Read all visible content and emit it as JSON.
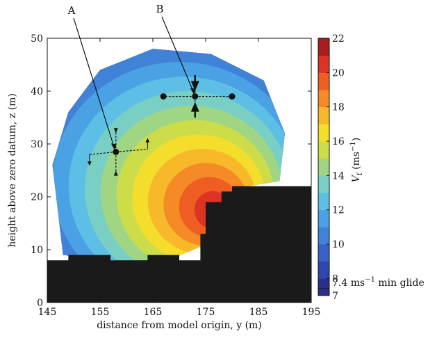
{
  "chart_data": {
    "type": "heatmap",
    "xlabel": "distance from model origin, y (m)",
    "ylabel": "height above zero datum, z (m)",
    "xlim": [
      145,
      195
    ],
    "ylim": [
      0,
      50
    ],
    "xticks": [
      145,
      155,
      165,
      175,
      185,
      195
    ],
    "yticks": [
      0,
      10,
      20,
      30,
      40,
      50
    ],
    "colorbar": {
      "label_main": "V",
      "label_sub": "f",
      "label_unit": " (ms",
      "label_exp": "−1",
      "label_close": ")",
      "range": [
        7,
        22
      ],
      "ticks": [
        8,
        10,
        12,
        14,
        16,
        18,
        20,
        22
      ],
      "bottom_tick": "7",
      "min_glide_value": 7.4,
      "min_glide_label_a": "7.4 ms",
      "min_glide_label_exp": "−1",
      "min_glide_label_b": " min glide",
      "colors": [
        "#2a2f8c",
        "#3046a8",
        "#3763c4",
        "#3f82d8",
        "#4aa1e3",
        "#5dbfe6",
        "#7acfc5",
        "#a0d683",
        "#cddd4a",
        "#f4de2b",
        "#f7b92a",
        "#f58a26",
        "#ee5e22",
        "#dc3324",
        "#a81d1d"
      ]
    },
    "field": {
      "peak_value": 22,
      "peak_location": [
        177,
        17
      ],
      "region_outline": [
        [
          148,
          9
        ],
        [
          146,
          26
        ],
        [
          149,
          36
        ],
        [
          155,
          44
        ],
        [
          165,
          48
        ],
        [
          176,
          47
        ],
        [
          186,
          42
        ],
        [
          190,
          32
        ],
        [
          189,
          23
        ],
        [
          183,
          22
        ],
        [
          178,
          16
        ],
        [
          175,
          11
        ],
        [
          168,
          8
        ],
        [
          158,
          8
        ]
      ],
      "contour_levels": [
        8,
        9,
        10,
        11,
        12,
        13,
        14,
        15,
        16,
        17,
        18,
        19,
        20,
        21,
        22
      ]
    },
    "terrain_polygon": [
      [
        145,
        8
      ],
      [
        149,
        8
      ],
      [
        149,
        9
      ],
      [
        157,
        9
      ],
      [
        157,
        8
      ],
      [
        164,
        8
      ],
      [
        164,
        9
      ],
      [
        170,
        9
      ],
      [
        170,
        8
      ],
      [
        174,
        8
      ],
      [
        174,
        13
      ],
      [
        175,
        13
      ],
      [
        175,
        19
      ],
      [
        178,
        19
      ],
      [
        178,
        21
      ],
      [
        180,
        21
      ],
      [
        180,
        22
      ],
      [
        195,
        22
      ],
      [
        195,
        0
      ],
      [
        145,
        0
      ]
    ],
    "annotations": [
      {
        "label": "A",
        "point": [
          158,
          28.5
        ],
        "cross": {
          "left": [
            153,
            28
          ],
          "right": [
            164,
            29
          ],
          "up": [
            158,
            33
          ],
          "down": [
            158,
            24
          ]
        }
      },
      {
        "label": "B",
        "point": [
          173,
          39
        ],
        "cross": {
          "left": [
            167,
            39
          ],
          "right": [
            180,
            39
          ],
          "up": [
            173,
            43
          ],
          "down": [
            173,
            35
          ]
        }
      }
    ]
  }
}
